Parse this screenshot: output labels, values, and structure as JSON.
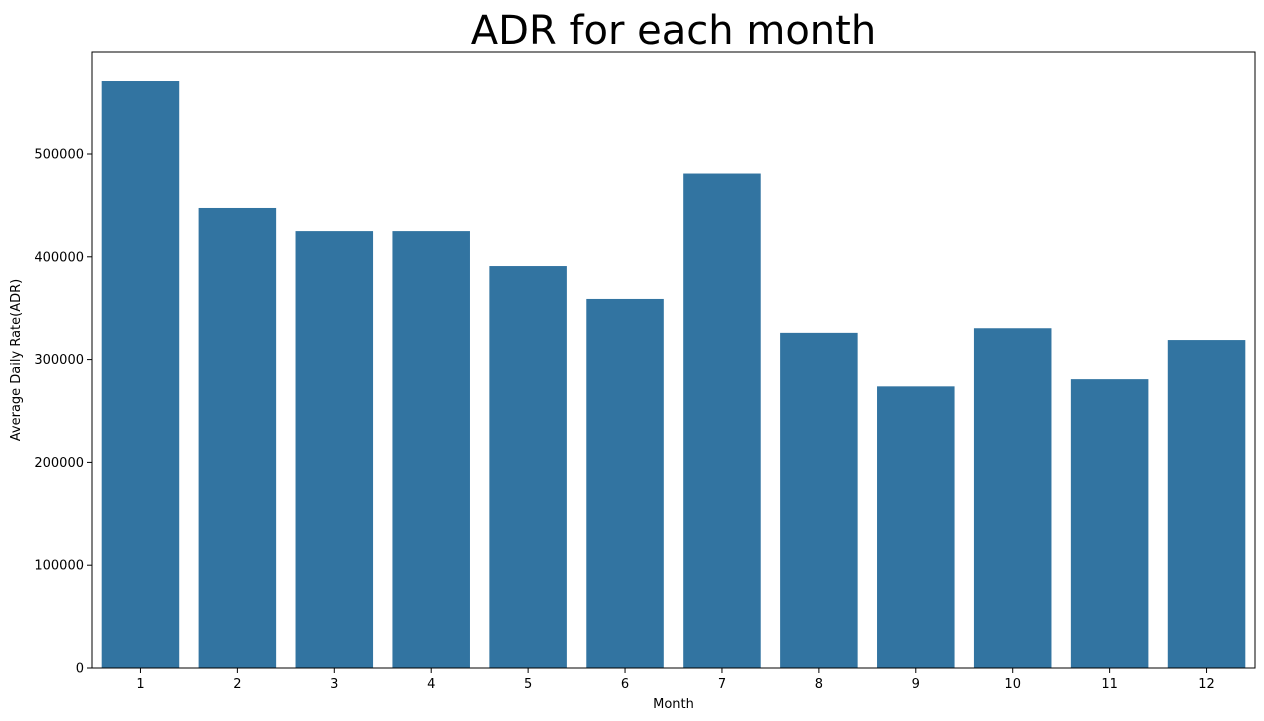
{
  "chart_data": {
    "type": "bar",
    "title": "ADR for each month",
    "xlabel": "Month",
    "ylabel": "Average Daily Rate(ADR)",
    "categories": [
      "1",
      "2",
      "3",
      "4",
      "5",
      "6",
      "7",
      "8",
      "9",
      "10",
      "11",
      "12"
    ],
    "values": [
      571000,
      447500,
      425000,
      425000,
      391000,
      359000,
      481000,
      326000,
      274000,
      330500,
      281000,
      319000
    ],
    "ylim": [
      0,
      600000
    ],
    "yticks": [
      0,
      100000,
      200000,
      300000,
      400000,
      500000
    ],
    "ytick_labels": [
      "0",
      "100000",
      "200000",
      "300000",
      "400000",
      "500000"
    ],
    "bar_color": "#3274a1",
    "grid": false,
    "legend": "none"
  }
}
